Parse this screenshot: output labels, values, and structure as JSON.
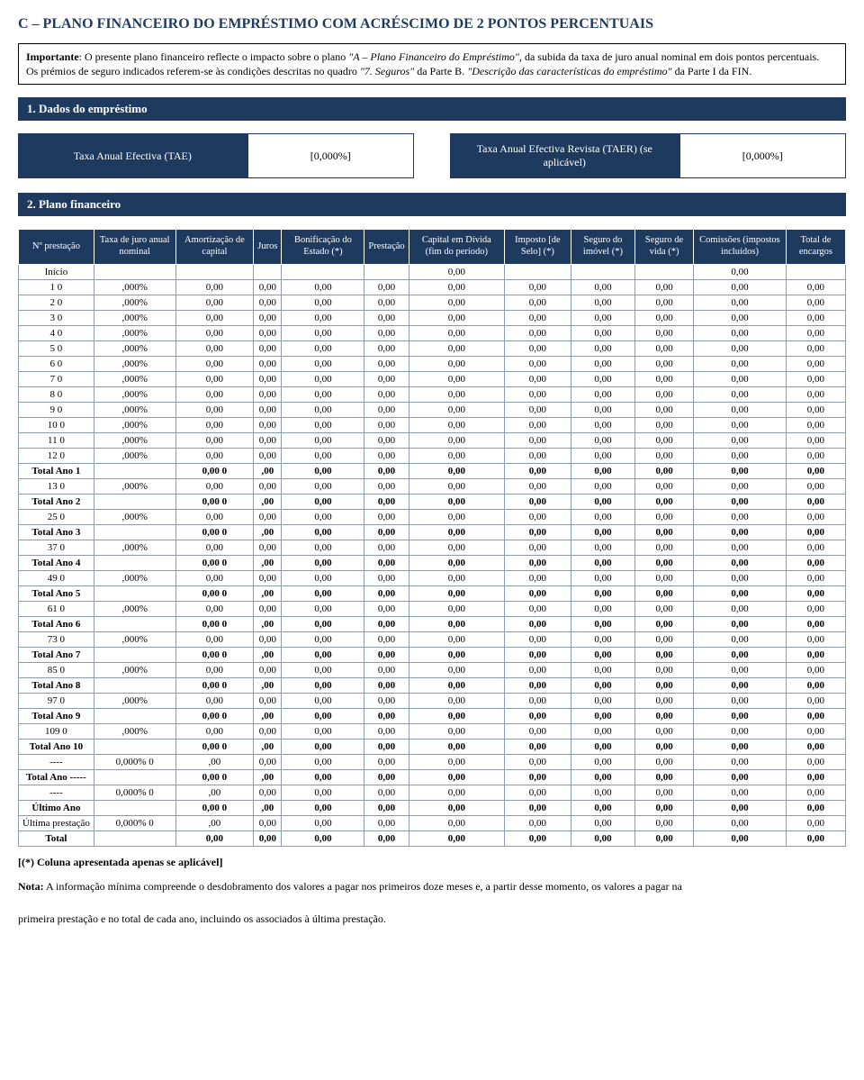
{
  "title": "C – PLANO FINANCEIRO DO EMPRÉSTIMO COM ACRÉSCIMO DE 2 PONTOS PERCENTUAIS",
  "title_color": "#1f3a5f",
  "important": {
    "label": "Importante",
    "text_a": ": O presente plano financeiro reflecte o impacto sobre o plano ",
    "plan_ref": "\"A – Plano Financeiro do Empréstimo\"",
    "text_b": ", da subida da taxa de juro anual nominal em dois pontos percentuais.",
    "para2_a": "Os prémios de seguro indicados referem-se às condições descritas no quadro ",
    "para2_em1": "\"7. Seguros\"",
    "para2_b": " da Parte B. ",
    "para2_em2": "\"Descrição das características do empréstimo\"",
    "para2_c": " da Parte I da FIN."
  },
  "sec1": {
    "title": "1. Dados do empréstimo"
  },
  "tae": {
    "left_label": "Taxa Anual Efectiva (TAE)",
    "left_value": "[0,000%]",
    "right_label": "Taxa Anual Efectiva Revista (TAER) (se aplicável)",
    "right_value": "[0,000%]"
  },
  "sec2": {
    "title": "2. Plano financeiro"
  },
  "table": {
    "header_bg": "#1f3a5f",
    "headers": [
      "Nº prestação",
      "Taxa de juro anual nominal",
      "Amortização de capital",
      "Juros",
      "Bonificação do Estado (*)",
      "Prestação",
      "Capital em Dívida (fim do período)",
      "Imposto [de Selo] (*)",
      "Seguro do imóvel (*)",
      "Seguro de vida (*)",
      "Comissões (impostos incluídos)",
      "Total de encargos"
    ],
    "rows": [
      {
        "label": "Início",
        "bold": false,
        "taxa": "",
        "cells": [
          "",
          "",
          "",
          "",
          "0,00",
          "",
          "",
          "",
          "0,00",
          ""
        ]
      },
      {
        "label": "1 0",
        "bold": false,
        "taxa": ",000%",
        "cells": [
          "0,00",
          "0,00",
          "0,00",
          "0,00",
          "0,00",
          "0,00",
          "0,00",
          "0,00",
          "0,00",
          "0,00"
        ]
      },
      {
        "label": "2 0",
        "bold": false,
        "taxa": ",000%",
        "cells": [
          "0,00",
          "0,00",
          "0,00",
          "0,00",
          "0,00",
          "0,00",
          "0,00",
          "0,00",
          "0,00",
          "0,00"
        ]
      },
      {
        "label": "3 0",
        "bold": false,
        "taxa": ",000%",
        "cells": [
          "0,00",
          "0,00",
          "0,00",
          "0,00",
          "0,00",
          "0,00",
          "0,00",
          "0,00",
          "0,00",
          "0,00"
        ]
      },
      {
        "label": "4 0",
        "bold": false,
        "taxa": ",000%",
        "cells": [
          "0,00",
          "0,00",
          "0,00",
          "0,00",
          "0,00",
          "0,00",
          "0,00",
          "0,00",
          "0,00",
          "0,00"
        ]
      },
      {
        "label": "5 0",
        "bold": false,
        "taxa": ",000%",
        "cells": [
          "0,00",
          "0,00",
          "0,00",
          "0,00",
          "0,00",
          "0,00",
          "0,00",
          "0,00",
          "0,00",
          "0,00"
        ]
      },
      {
        "label": "6 0",
        "bold": false,
        "taxa": ",000%",
        "cells": [
          "0,00",
          "0,00",
          "0,00",
          "0,00",
          "0,00",
          "0,00",
          "0,00",
          "0,00",
          "0,00",
          "0,00"
        ]
      },
      {
        "label": "7 0",
        "bold": false,
        "taxa": ",000%",
        "cells": [
          "0,00",
          "0,00",
          "0,00",
          "0,00",
          "0,00",
          "0,00",
          "0,00",
          "0,00",
          "0,00",
          "0,00"
        ]
      },
      {
        "label": "8 0",
        "bold": false,
        "taxa": ",000%",
        "cells": [
          "0,00",
          "0,00",
          "0,00",
          "0,00",
          "0,00",
          "0,00",
          "0,00",
          "0,00",
          "0,00",
          "0,00"
        ]
      },
      {
        "label": "9 0",
        "bold": false,
        "taxa": ",000%",
        "cells": [
          "0,00",
          "0,00",
          "0,00",
          "0,00",
          "0,00",
          "0,00",
          "0,00",
          "0,00",
          "0,00",
          "0,00"
        ]
      },
      {
        "label": "10 0",
        "bold": false,
        "taxa": ",000%",
        "cells": [
          "0,00",
          "0,00",
          "0,00",
          "0,00",
          "0,00",
          "0,00",
          "0,00",
          "0,00",
          "0,00",
          "0,00"
        ]
      },
      {
        "label": "11 0",
        "bold": false,
        "taxa": ",000%",
        "cells": [
          "0,00",
          "0,00",
          "0,00",
          "0,00",
          "0,00",
          "0,00",
          "0,00",
          "0,00",
          "0,00",
          "0,00"
        ]
      },
      {
        "label": "12 0",
        "bold": false,
        "taxa": ",000%",
        "cells": [
          "0,00",
          "0,00",
          "0,00",
          "0,00",
          "0,00",
          "0,00",
          "0,00",
          "0,00",
          "0,00",
          "0,00"
        ]
      },
      {
        "label": "Total Ano 1",
        "bold": true,
        "taxa": "",
        "cells": [
          "0,00 0",
          "  ,00",
          "0,00",
          "0,00",
          "0,00",
          "0,00",
          "0,00",
          "0,00",
          "0,00",
          "0,00"
        ]
      },
      {
        "label": "13 0",
        "bold": false,
        "taxa": ",000%",
        "cells": [
          "0,00",
          "0,00",
          "0,00",
          "0,00",
          "0,00",
          "0,00",
          "0,00",
          "0,00",
          "0,00",
          "0,00"
        ]
      },
      {
        "label": "Total Ano 2",
        "bold": true,
        "taxa": "",
        "cells": [
          "0,00 0",
          "  ,00",
          "0,00",
          "0,00",
          "0,00",
          "0,00",
          "0,00",
          "0,00",
          "0,00",
          "0,00"
        ]
      },
      {
        "label": "25 0",
        "bold": false,
        "taxa": ",000%",
        "cells": [
          "0,00",
          "0,00",
          "0,00",
          "0,00",
          "0,00",
          "0,00",
          "0,00",
          "0,00",
          "0,00",
          "0,00"
        ]
      },
      {
        "label": "Total Ano 3",
        "bold": true,
        "taxa": "",
        "cells": [
          "0,00 0",
          "  ,00",
          "0,00",
          "0,00",
          "0,00",
          "0,00",
          "0,00",
          "0,00",
          "0,00",
          "0,00"
        ]
      },
      {
        "label": "37 0",
        "bold": false,
        "taxa": ",000%",
        "cells": [
          "0,00",
          "0,00",
          "0,00",
          "0,00",
          "0,00",
          "0,00",
          "0,00",
          "0,00",
          "0,00",
          "0,00"
        ]
      },
      {
        "label": "Total Ano 4",
        "bold": true,
        "taxa": "",
        "cells": [
          "0,00 0",
          "  ,00",
          "0,00",
          "0,00",
          "0,00",
          "0,00",
          "0,00",
          "0,00",
          "0,00",
          "0,00"
        ]
      },
      {
        "label": "49 0",
        "bold": false,
        "taxa": ",000%",
        "cells": [
          "0,00",
          "0,00",
          "0,00",
          "0,00",
          "0,00",
          "0,00",
          "0,00",
          "0,00",
          "0,00",
          "0,00"
        ]
      },
      {
        "label": "Total Ano 5",
        "bold": true,
        "taxa": "",
        "cells": [
          "0,00 0",
          "  ,00",
          "0,00",
          "0,00",
          "0,00",
          "0,00",
          "0,00",
          "0,00",
          "0,00",
          "0,00"
        ]
      },
      {
        "label": "61 0",
        "bold": false,
        "taxa": ",000%",
        "cells": [
          "0,00",
          "0,00",
          "0,00",
          "0,00",
          "0,00",
          "0,00",
          "0,00",
          "0,00",
          "0,00",
          "0,00"
        ]
      },
      {
        "label": "Total Ano 6",
        "bold": true,
        "taxa": "",
        "cells": [
          "0,00 0",
          "  ,00",
          "0,00",
          "0,00",
          "0,00",
          "0,00",
          "0,00",
          "0,00",
          "0,00",
          "0,00"
        ]
      },
      {
        "label": "73 0",
        "bold": false,
        "taxa": ",000%",
        "cells": [
          "0,00",
          "0,00",
          "0,00",
          "0,00",
          "0,00",
          "0,00",
          "0,00",
          "0,00",
          "0,00",
          "0,00"
        ]
      },
      {
        "label": "Total Ano 7",
        "bold": true,
        "taxa": "",
        "cells": [
          "0,00 0",
          "  ,00",
          "0,00",
          "0,00",
          "0,00",
          "0,00",
          "0,00",
          "0,00",
          "0,00",
          "0,00"
        ]
      },
      {
        "label": "85 0",
        "bold": false,
        "taxa": ",000%",
        "cells": [
          "0,00",
          "0,00",
          "0,00",
          "0,00",
          "0,00",
          "0,00",
          "0,00",
          "0,00",
          "0,00",
          "0,00"
        ]
      },
      {
        "label": "Total Ano 8",
        "bold": true,
        "taxa": "",
        "cells": [
          "0,00 0",
          "  ,00",
          "0,00",
          "0,00",
          "0,00",
          "0,00",
          "0,00",
          "0,00",
          "0,00",
          "0,00"
        ]
      },
      {
        "label": "97 0",
        "bold": false,
        "taxa": ",000%",
        "cells": [
          "0,00",
          "0,00",
          "0,00",
          "0,00",
          "0,00",
          "0,00",
          "0,00",
          "0,00",
          "0,00",
          "0,00"
        ]
      },
      {
        "label": "Total Ano 9",
        "bold": true,
        "taxa": "",
        "cells": [
          "0,00 0",
          "  ,00",
          "0,00",
          "0,00",
          "0,00",
          "0,00",
          "0,00",
          "0,00",
          "0,00",
          "0,00"
        ]
      },
      {
        "label": "109 0",
        "bold": false,
        "taxa": ",000%",
        "cells": [
          "0,00",
          "0,00",
          "0,00",
          "0,00",
          "0,00",
          "0,00",
          "0,00",
          "0,00",
          "0,00",
          "0,00"
        ]
      },
      {
        "label": "Total Ano 10",
        "bold": true,
        "taxa": "",
        "cells": [
          "0,00 0",
          "  ,00",
          "0,00",
          "0,00",
          "0,00",
          "0,00",
          "0,00",
          "0,00",
          "0,00",
          "0,00"
        ]
      },
      {
        "label": "----",
        "bold": false,
        "taxa": "0,000% 0",
        "cells": [
          "  ,00",
          "0,00",
          "0,00",
          "0,00",
          "0,00",
          "0,00",
          "0,00",
          "0,00",
          "0,00",
          "0,00"
        ]
      },
      {
        "label": "Total Ano -----",
        "bold": true,
        "taxa": "",
        "cells": [
          "0,00 0",
          "  ,00",
          "0,00",
          "0,00",
          "0,00",
          "0,00",
          "0,00",
          "0,00",
          "0,00",
          "0,00"
        ]
      },
      {
        "label": "----",
        "bold": false,
        "taxa": "0,000% 0",
        "cells": [
          "  ,00",
          "0,00",
          "0,00",
          "0,00",
          "0,00",
          "0,00",
          "0,00",
          "0,00",
          "0,00",
          "0,00"
        ]
      },
      {
        "label": "Último Ano",
        "bold": true,
        "taxa": "",
        "cells": [
          "0,00 0",
          "  ,00",
          "0,00",
          "0,00",
          "0,00",
          "0,00",
          "0,00",
          "0,00",
          "0,00",
          "0,00"
        ]
      },
      {
        "label": "Última prestação",
        "bold": false,
        "taxa": "0,000% 0",
        "cells": [
          "  ,00",
          "0,00",
          "0,00",
          "0,00",
          "0,00",
          "0,00",
          "0,00",
          "0,00",
          "0,00",
          "0,00"
        ]
      },
      {
        "label": "Total",
        "bold": true,
        "taxa": "",
        "cells": [
          "0,00",
          "0,00",
          "0,00",
          "0,00",
          "0,00",
          "0,00",
          "0,00",
          "0,00",
          "0,00",
          "0,00"
        ]
      }
    ]
  },
  "footnote": "[(*) Coluna apresentada apenas se aplicável]",
  "nota": {
    "label": "Nota:",
    "body1": " A informação mínima compreende o desdobramento dos valores a pagar nos primeiros doze meses e, a partir desse momento, os valores a pagar na",
    "body2": "primeira prestação e no total de cada ano, incluindo os associados à última prestação."
  }
}
